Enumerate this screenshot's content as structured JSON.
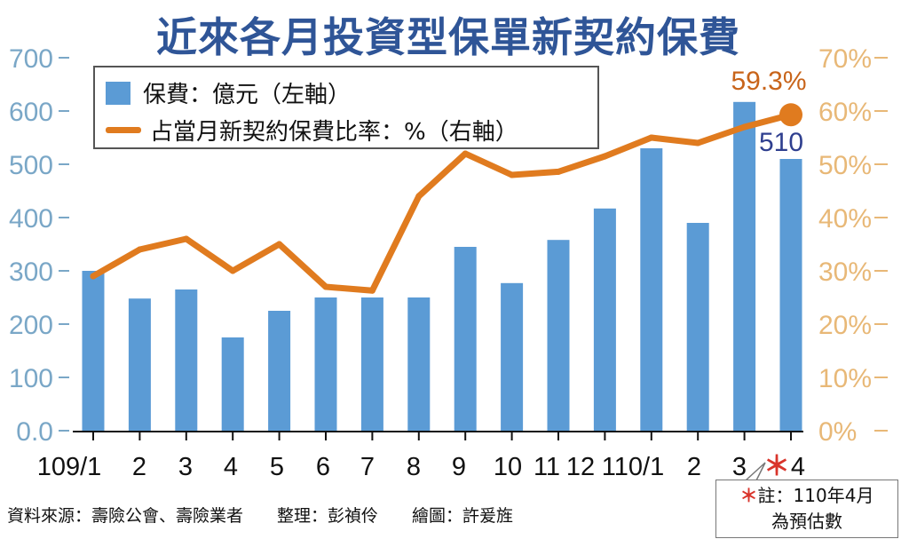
{
  "title": "近來各月投資型保單新契約保費",
  "legend": {
    "bar_label": "保費：億元（左軸）",
    "line_label": "占當月新契約保費比率：%（右軸）"
  },
  "source": "資料來源：壽險公會、壽險業者　　整理：彭禎伶　　繪圖：許爰旌",
  "note": {
    "line1": "註：110年4月",
    "line2": "為預估數",
    "asterisk": "＊"
  },
  "colors": {
    "bar": "#5b9bd5",
    "line": "#e07b1f",
    "left_axis_text": "#7aa7c7",
    "right_axis_text": "#e8b877",
    "title": "#2f5597",
    "last_bar_label": "#2f3f8f",
    "last_line_label": "#c8641a",
    "note_asterisk": "#d9342b"
  },
  "chart_data": {
    "type": "bar",
    "categories": [
      "109/1",
      "2",
      "3",
      "4",
      "5",
      "6",
      "7",
      "8",
      "9",
      "10",
      "11",
      "12",
      "110/1",
      "2",
      "3",
      "4"
    ],
    "last_category_marker": "＊",
    "series": [
      {
        "type": "bar",
        "axis": "left",
        "values": [
          300,
          248,
          265,
          175,
          225,
          250,
          250,
          250,
          345,
          277,
          358,
          417,
          530,
          390,
          617,
          510
        ]
      },
      {
        "type": "line",
        "axis": "right",
        "values": [
          29,
          34,
          36,
          30,
          35,
          27,
          26.3,
          44,
          52,
          48,
          48.6,
          51.5,
          55,
          54,
          57,
          59.3
        ]
      }
    ],
    "left_axis": {
      "ylim": [
        0,
        700
      ],
      "ticks": [
        "0.0",
        "100",
        "200",
        "300",
        "400",
        "500",
        "600",
        "700"
      ]
    },
    "right_axis": {
      "ylim": [
        0,
        70
      ],
      "ticks": [
        "0%",
        "10%",
        "20%",
        "30%",
        "40%",
        "50%",
        "60%",
        "70%"
      ]
    },
    "annotations": {
      "last_bar_value": "510",
      "last_line_value": "59.3%"
    }
  }
}
